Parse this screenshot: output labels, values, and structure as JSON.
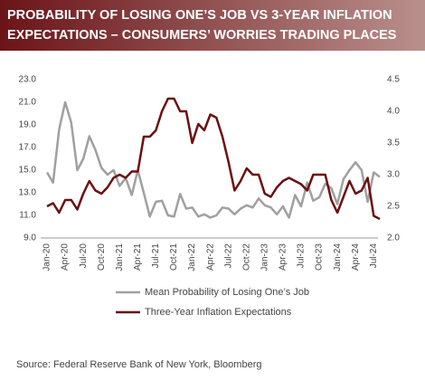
{
  "chart_data": {
    "type": "line",
    "title": [
      "PROBABILITY OF LOSING ONE’S JOB VS 3-YEAR INFLATION",
      "EXPECTATIONS – CONSUMERS’ WORRIES TRADING PLACES"
    ],
    "categories": [
      "Jan-20",
      null,
      null,
      "Apr-20",
      null,
      null,
      "Jul-20",
      null,
      null,
      "Oct-20",
      null,
      null,
      "Jan-21",
      null,
      null,
      "Apr-21",
      null,
      null,
      "Jul-21",
      null,
      null,
      "Oct-21",
      null,
      null,
      "Jan-22",
      null,
      null,
      "Apr-22",
      null,
      null,
      "Jul-22",
      null,
      null,
      "Oct-22",
      null,
      null,
      "Jan-23",
      null,
      null,
      "Apr-23",
      null,
      null,
      "Jul-23",
      null,
      null,
      "Oct-23",
      null,
      null,
      "Jan-24",
      null,
      null,
      "Apr-24",
      null,
      null,
      "Jul-24",
      null
    ],
    "series": [
      {
        "name": "Mean Probability of Losing One’s Job",
        "color": "#a0a0a0",
        "values": [
          14.8,
          13.9,
          18.6,
          21.0,
          19.2,
          15.0,
          16.0,
          18.0,
          16.8,
          15.2,
          14.6,
          15.0,
          13.6,
          14.3,
          12.8,
          15.0,
          13.0,
          10.9,
          12.2,
          12.3,
          11.0,
          10.9,
          12.9,
          11.6,
          11.7,
          10.9,
          11.1,
          10.8,
          11.0,
          11.7,
          11.6,
          11.1,
          11.6,
          11.9,
          11.7,
          12.5,
          11.9,
          11.7,
          11.1,
          11.8,
          10.8,
          12.8,
          11.8,
          13.9,
          12.3,
          12.6,
          13.8,
          13.4,
          12.0,
          14.2,
          15.0,
          15.7,
          15.0,
          12.2,
          14.8,
          14.4
        ]
      },
      {
        "name": "Three-Year Inflation Expectations",
        "color": "#6b0f12",
        "axis": "y2",
        "values": [
          2.5,
          2.55,
          2.4,
          2.6,
          2.6,
          2.45,
          2.7,
          2.9,
          2.75,
          2.7,
          2.8,
          2.95,
          3.0,
          2.95,
          3.05,
          3.05,
          3.6,
          3.6,
          3.7,
          4.0,
          4.2,
          4.2,
          4.0,
          4.0,
          3.5,
          3.8,
          3.7,
          3.95,
          3.9,
          3.6,
          3.2,
          2.75,
          2.9,
          3.1,
          3.0,
          3.0,
          2.7,
          2.65,
          2.8,
          2.9,
          2.95,
          2.9,
          2.85,
          2.75,
          3.0,
          3.0,
          3.0,
          2.6,
          2.4,
          2.65,
          2.9,
          2.7,
          2.75,
          2.95,
          2.35,
          2.3
        ]
      }
    ],
    "ylim": [
      9,
      23
    ],
    "yticks": [
      {
        "value": 9,
        "label": "9.0"
      },
      {
        "value": 11,
        "label": "11.0"
      },
      {
        "value": 13,
        "label": "13.0"
      },
      {
        "value": 15,
        "label": "15.0"
      },
      {
        "value": 17,
        "label": "17.0"
      },
      {
        "value": 19,
        "label": "19.0"
      },
      {
        "value": 21,
        "label": "21.0"
      },
      {
        "value": 23,
        "label": "23.0"
      }
    ],
    "y2lim": [
      2,
      4.5
    ],
    "y2ticks": [
      {
        "value": 2,
        "label": "2.0"
      },
      2.5,
      {
        "value": 3,
        "label": "3.0"
      },
      3.5,
      {
        "value": 4,
        "label": "4.0"
      },
      4.5
    ],
    "source": "Source: Federal Reserve Bank of New York, Bloomberg"
  }
}
